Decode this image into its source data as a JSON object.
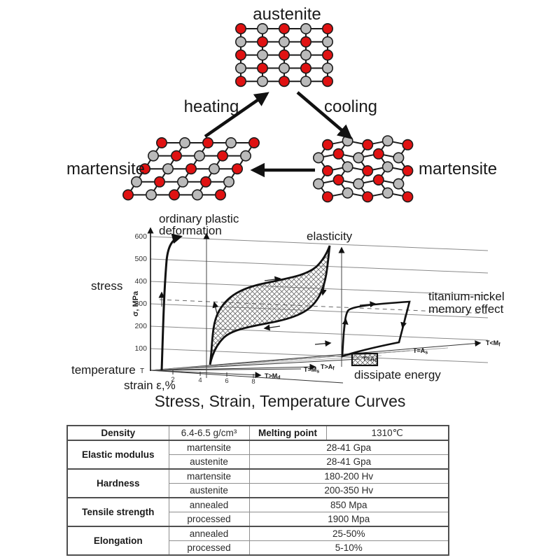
{
  "colors": {
    "atom_red": "#e01212",
    "atom_gray": "#bababa",
    "bond": "#1c1c1c",
    "grid": "#8a8a8a",
    "curve": "#111111"
  },
  "transformation": {
    "austenite_label": "austenite",
    "heating_label": "heating",
    "cooling_label": "cooling",
    "martensite_left_label": "martensite",
    "martensite_right_label": "martensite"
  },
  "chart": {
    "title": "Stress, Strain, Temperature Curves",
    "ylabel": "σ, MPa",
    "yticks": [
      "600",
      "500",
      "400",
      "300",
      "200",
      "100"
    ],
    "xticks": [
      "2",
      "4",
      "6",
      "8"
    ],
    "stress_label": "stress",
    "temperature_label": "temperature",
    "temperature_symbol": "T",
    "strain_label": "strain ε,%",
    "plastic_label_line1": "ordinary plastic",
    "plastic_label_line2": "deformation",
    "elasticity_label": "elasticity",
    "memory_label_line1": "titanium-nickel",
    "memory_label_line2": "memory effect",
    "legend_label": "dissipate energy",
    "temp_labels": [
      {
        "m": "T>M",
        "s": "d"
      },
      {
        "m": "T=M",
        "s": "s"
      },
      {
        "m": "T>A",
        "s": "f"
      },
      {
        "m": "T=A",
        "s": "f"
      },
      {
        "m": "T=A",
        "s": "s"
      },
      {
        "m": "T<M",
        "s": "f"
      }
    ]
  },
  "chart_data": {
    "type": "line",
    "title": "Stress, Strain, Temperature Curves",
    "xlabel": "strain ε,%",
    "ylabel": "σ, MPa",
    "zlabel": "temperature",
    "x_ticks": [
      2,
      4,
      6,
      8
    ],
    "y_ticks": [
      100,
      200,
      300,
      400,
      500,
      600
    ],
    "series": [
      {
        "name": "ordinary plastic deformation",
        "plane": "T>Md",
        "description": "steep rise near 0-1% strain up to ~600 MPa"
      },
      {
        "name": "elasticity (superelastic hysteresis loop)",
        "plane": "T>Af",
        "description": "cross-hatched loop ~2-7% strain, upper plateau ~400-450 MPa, lower plateau ~250-300 MPa"
      },
      {
        "name": "titanium-nickel memory effect",
        "plane": "T<Mf",
        "description": "small loop ~7-9% strain, plateau ~300 MPa"
      }
    ],
    "temperature_planes": [
      "T>Md",
      "T=Ms",
      "T>Af",
      "T=Af",
      "T=As",
      "T<Mf"
    ],
    "legend": "dissipate energy (hatched area)"
  },
  "table": {
    "density_label": "Density",
    "density_value": "6.4-6.5 g/cm³",
    "melting_label": "Melting point",
    "melting_value": "1310℃",
    "groups": [
      {
        "name": "Elastic modulus",
        "rows": [
          {
            "k": "martensite",
            "v": "28-41 Gpa"
          },
          {
            "k": "austenite",
            "v": "28-41 Gpa"
          }
        ]
      },
      {
        "name": "Hardness",
        "rows": [
          {
            "k": "martensite",
            "v": "180-200 Hv"
          },
          {
            "k": "austenite",
            "v": "200-350 Hv"
          }
        ]
      },
      {
        "name": "Tensile strength",
        "rows": [
          {
            "k": "annealed",
            "v": "850 Mpa"
          },
          {
            "k": "processed",
            "v": "1900 Mpa"
          }
        ]
      },
      {
        "name": "Elongation",
        "rows": [
          {
            "k": "annealed",
            "v": "25-50%"
          },
          {
            "k": "processed",
            "v": "5-10%"
          }
        ]
      }
    ]
  }
}
